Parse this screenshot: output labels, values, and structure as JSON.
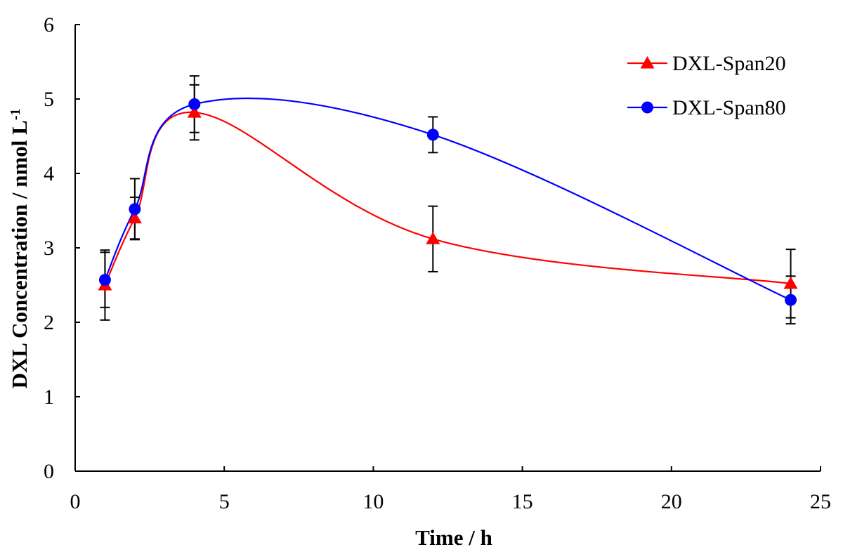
{
  "chart_data": {
    "type": "line",
    "title": "",
    "xlabel": "Time / h",
    "ylabel": "DXL Concentration / nmol L",
    "ylabel_superscript": "-1",
    "xlim": [
      0,
      25
    ],
    "ylim": [
      0,
      6
    ],
    "x_ticks": [
      "0",
      "5",
      "10",
      "15",
      "20",
      "25"
    ],
    "y_ticks": [
      "0",
      "1",
      "2",
      "3",
      "4",
      "5",
      "6"
    ],
    "grid": false,
    "legend_position": "top-right",
    "smooth": true,
    "series": [
      {
        "name": "DXL-Span20",
        "color": "#ff0000",
        "marker": "triangle",
        "x": [
          1,
          2,
          4,
          12,
          24
        ],
        "y": [
          2.5,
          3.4,
          4.82,
          3.12,
          2.52
        ],
        "error": [
          0.47,
          0.28,
          0.37,
          0.44,
          0.46
        ]
      },
      {
        "name": "DXL-Span80",
        "color": "#0000ff",
        "marker": "circle",
        "x": [
          1,
          2,
          4,
          12,
          24
        ],
        "y": [
          2.57,
          3.52,
          4.93,
          4.52,
          2.3
        ],
        "error": [
          0.37,
          0.41,
          0.38,
          0.24,
          0.32
        ]
      }
    ]
  }
}
